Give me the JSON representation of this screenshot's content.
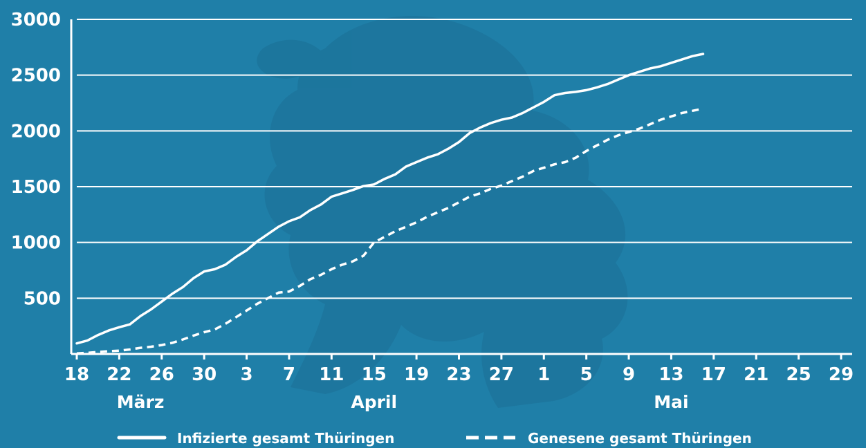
{
  "colors": {
    "background": "#1f7fa8",
    "watermark": "#1b6f95",
    "line": "#ffffff",
    "grid": "#ffffff"
  },
  "watermark_icon": "thuringia-lion-coat-of-arms",
  "chart_data": {
    "type": "line",
    "title": "",
    "x_axis": {
      "type": "date",
      "range": [
        "2020-03-18",
        "2020-05-29"
      ],
      "tick_dates": [
        "2020-03-18",
        "2020-03-22",
        "2020-03-26",
        "2020-03-30",
        "2020-04-03",
        "2020-04-07",
        "2020-04-11",
        "2020-04-15",
        "2020-04-19",
        "2020-04-23",
        "2020-04-27",
        "2020-05-01",
        "2020-05-05",
        "2020-05-09",
        "2020-05-13",
        "2020-05-17",
        "2020-05-21",
        "2020-05-25",
        "2020-05-29"
      ],
      "tick_labels": [
        "18",
        "22",
        "26",
        "30",
        "3",
        "7",
        "11",
        "15",
        "19",
        "23",
        "27",
        "1",
        "5",
        "9",
        "13",
        "17",
        "21",
        "25",
        "29"
      ],
      "month_labels": [
        {
          "text": "März",
          "date": "2020-03-24"
        },
        {
          "text": "April",
          "date": "2020-04-15"
        },
        {
          "text": "Mai",
          "date": "2020-05-13"
        }
      ]
    },
    "y_axis": {
      "min": 0,
      "max": 3000,
      "ticks": [
        500,
        1000,
        1500,
        2000,
        2500,
        3000
      ],
      "tick_labels": [
        "500",
        "1000",
        "1500",
        "2000",
        "2500",
        "3000"
      ],
      "grid": true
    },
    "legend": {
      "placement": "bottom"
    },
    "series": [
      {
        "name": "Infizierte gesamt Thüringen",
        "style": "solid",
        "points": [
          [
            "2020-03-18",
            95
          ],
          [
            "2020-03-19",
            120
          ],
          [
            "2020-03-20",
            170
          ],
          [
            "2020-03-21",
            210
          ],
          [
            "2020-03-22",
            240
          ],
          [
            "2020-03-23",
            265
          ],
          [
            "2020-03-24",
            340
          ],
          [
            "2020-03-25",
            400
          ],
          [
            "2020-03-26",
            470
          ],
          [
            "2020-03-27",
            540
          ],
          [
            "2020-03-28",
            600
          ],
          [
            "2020-03-29",
            680
          ],
          [
            "2020-03-30",
            740
          ],
          [
            "2020-03-31",
            760
          ],
          [
            "2020-04-01",
            800
          ],
          [
            "2020-04-02",
            870
          ],
          [
            "2020-04-03",
            930
          ],
          [
            "2020-04-04",
            1010
          ],
          [
            "2020-04-05",
            1075
          ],
          [
            "2020-04-06",
            1140
          ],
          [
            "2020-04-07",
            1190
          ],
          [
            "2020-04-08",
            1225
          ],
          [
            "2020-04-09",
            1290
          ],
          [
            "2020-04-10",
            1340
          ],
          [
            "2020-04-11",
            1410
          ],
          [
            "2020-04-12",
            1440
          ],
          [
            "2020-04-13",
            1470
          ],
          [
            "2020-04-14",
            1505
          ],
          [
            "2020-04-15",
            1520
          ],
          [
            "2020-04-16",
            1570
          ],
          [
            "2020-04-17",
            1610
          ],
          [
            "2020-04-18",
            1680
          ],
          [
            "2020-04-19",
            1720
          ],
          [
            "2020-04-20",
            1760
          ],
          [
            "2020-04-21",
            1790
          ],
          [
            "2020-04-22",
            1840
          ],
          [
            "2020-04-23",
            1900
          ],
          [
            "2020-04-24",
            1980
          ],
          [
            "2020-04-25",
            2030
          ],
          [
            "2020-04-26",
            2070
          ],
          [
            "2020-04-27",
            2100
          ],
          [
            "2020-04-28",
            2120
          ],
          [
            "2020-04-29",
            2160
          ],
          [
            "2020-04-30",
            2210
          ],
          [
            "2020-05-01",
            2260
          ],
          [
            "2020-05-02",
            2320
          ],
          [
            "2020-05-03",
            2340
          ],
          [
            "2020-05-04",
            2350
          ],
          [
            "2020-05-05",
            2365
          ],
          [
            "2020-05-06",
            2390
          ],
          [
            "2020-05-07",
            2420
          ],
          [
            "2020-05-08",
            2460
          ],
          [
            "2020-05-09",
            2500
          ],
          [
            "2020-05-10",
            2530
          ],
          [
            "2020-05-11",
            2560
          ],
          [
            "2020-05-12",
            2580
          ],
          [
            "2020-05-13",
            2610
          ],
          [
            "2020-05-14",
            2640
          ],
          [
            "2020-05-15",
            2670
          ],
          [
            "2020-05-16",
            2690
          ]
        ]
      },
      {
        "name": "Genesene gesamt Thüringen",
        "style": "dashed",
        "points": [
          [
            "2020-03-18",
            5
          ],
          [
            "2020-03-19",
            10
          ],
          [
            "2020-03-20",
            18
          ],
          [
            "2020-03-21",
            25
          ],
          [
            "2020-03-22",
            30
          ],
          [
            "2020-03-23",
            40
          ],
          [
            "2020-03-24",
            55
          ],
          [
            "2020-03-25",
            65
          ],
          [
            "2020-03-26",
            80
          ],
          [
            "2020-03-27",
            100
          ],
          [
            "2020-03-28",
            130
          ],
          [
            "2020-03-29",
            165
          ],
          [
            "2020-03-30",
            195
          ],
          [
            "2020-03-31",
            220
          ],
          [
            "2020-04-01",
            270
          ],
          [
            "2020-04-02",
            330
          ],
          [
            "2020-04-03",
            390
          ],
          [
            "2020-04-04",
            450
          ],
          [
            "2020-04-05",
            500
          ],
          [
            "2020-04-06",
            550
          ],
          [
            "2020-04-07",
            560
          ],
          [
            "2020-04-08",
            610
          ],
          [
            "2020-04-09",
            670
          ],
          [
            "2020-04-10",
            710
          ],
          [
            "2020-04-11",
            760
          ],
          [
            "2020-04-12",
            800
          ],
          [
            "2020-04-13",
            830
          ],
          [
            "2020-04-14",
            880
          ],
          [
            "2020-04-15",
            1000
          ],
          [
            "2020-04-16",
            1050
          ],
          [
            "2020-04-17",
            1100
          ],
          [
            "2020-04-18",
            1140
          ],
          [
            "2020-04-19",
            1180
          ],
          [
            "2020-04-20",
            1230
          ],
          [
            "2020-04-21",
            1270
          ],
          [
            "2020-04-22",
            1310
          ],
          [
            "2020-04-23",
            1360
          ],
          [
            "2020-04-24",
            1410
          ],
          [
            "2020-04-25",
            1440
          ],
          [
            "2020-04-26",
            1480
          ],
          [
            "2020-04-27",
            1510
          ],
          [
            "2020-04-28",
            1550
          ],
          [
            "2020-04-29",
            1590
          ],
          [
            "2020-04-30",
            1640
          ],
          [
            "2020-05-01",
            1670
          ],
          [
            "2020-05-02",
            1700
          ],
          [
            "2020-05-03",
            1720
          ],
          [
            "2020-05-04",
            1760
          ],
          [
            "2020-05-05",
            1820
          ],
          [
            "2020-05-06",
            1870
          ],
          [
            "2020-05-07",
            1920
          ],
          [
            "2020-05-08",
            1960
          ],
          [
            "2020-05-09",
            1990
          ],
          [
            "2020-05-10",
            2020
          ],
          [
            "2020-05-11",
            2060
          ],
          [
            "2020-05-12",
            2100
          ],
          [
            "2020-05-13",
            2130
          ],
          [
            "2020-05-14",
            2160
          ],
          [
            "2020-05-15",
            2180
          ],
          [
            "2020-05-16",
            2200
          ]
        ]
      }
    ]
  }
}
